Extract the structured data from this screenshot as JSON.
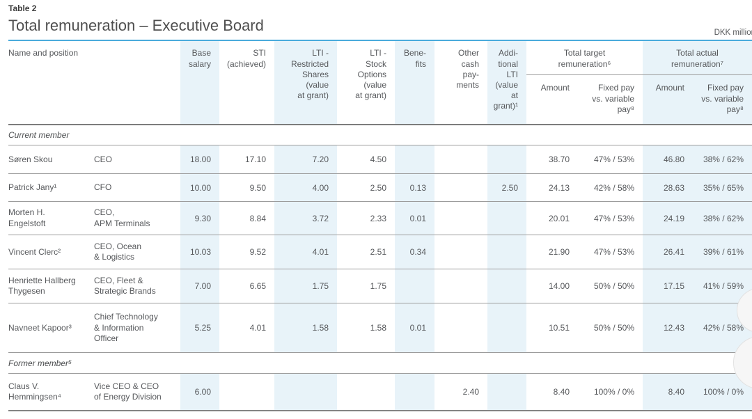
{
  "header": {
    "table_label": "Table 2",
    "title": "Total remuneration – Executive Board",
    "unit": "DKK million"
  },
  "columns": {
    "name_position": "Name and position",
    "base_salary": "Base\nsalary",
    "sti": "STI\n(achieved)",
    "lti_restricted": "LTI -\nRestricted\nShares\n(value\nat grant)",
    "lti_stock": "LTI -\nStock\nOptions\n(value\nat grant)",
    "benefits": "Bene-\nfits",
    "other_cash": "Other\ncash\npay-\nments",
    "additional_lti": "Addi-\ntional\nLTI\n(value\nat\ngrant)¹",
    "target_group": "Total target\nremuneration⁶",
    "actual_group": "Total actual\nremuneration⁷",
    "amount": "Amount",
    "fixed_vs_variable": "Fixed pay\nvs. variable\npay⁸"
  },
  "sections": {
    "current": {
      "label": "Current member"
    },
    "former": {
      "label": "Former member⁵"
    }
  },
  "rows": [
    {
      "name": "Søren Skou",
      "position": "CEO",
      "base": "18.00",
      "sti": "17.10",
      "lti_rs": "7.20",
      "lti_so": "4.50",
      "benefits": "",
      "other_cash": "",
      "additional_lti": "",
      "target_amount": "38.70",
      "target_split": "47% / 53%",
      "actual_amount": "46.80",
      "actual_split": "38% / 62%"
    },
    {
      "name": "Patrick Jany¹",
      "position": "CFO",
      "base": "10.00",
      "sti": "9.50",
      "lti_rs": "4.00",
      "lti_so": "2.50",
      "benefits": "0.13",
      "other_cash": "",
      "additional_lti": "2.50",
      "target_amount": "24.13",
      "target_split": "42% / 58%",
      "actual_amount": "28.63",
      "actual_split": "35% / 65%"
    },
    {
      "name": "Morten H.\nEngelstoft",
      "position": "CEO,\nAPM Terminals",
      "base": "9.30",
      "sti": "8.84",
      "lti_rs": "3.72",
      "lti_so": "2.33",
      "benefits": "0.01",
      "other_cash": "",
      "additional_lti": "",
      "target_amount": "20.01",
      "target_split": "47% / 53%",
      "actual_amount": "24.19",
      "actual_split": "38% / 62%"
    },
    {
      "name": "Vincent Clerc²",
      "position": "CEO, Ocean\n& Logistics",
      "base": "10.03",
      "sti": "9.52",
      "lti_rs": "4.01",
      "lti_so": "2.51",
      "benefits": "0.34",
      "other_cash": "",
      "additional_lti": "",
      "target_amount": "21.90",
      "target_split": "47% / 53%",
      "actual_amount": "26.41",
      "actual_split": "39% / 61%"
    },
    {
      "name": "Henriette Hallberg\nThygesen",
      "position": "CEO, Fleet &\nStrategic Brands",
      "base": "7.00",
      "sti": "6.65",
      "lti_rs": "1.75",
      "lti_so": "1.75",
      "benefits": "",
      "other_cash": "",
      "additional_lti": "",
      "target_amount": "14.00",
      "target_split": "50% / 50%",
      "actual_amount": "17.15",
      "actual_split": "41% / 59%"
    },
    {
      "name": "Navneet Kapoor³",
      "position": "Chief Technology\n& Information\nOfficer",
      "base": "5.25",
      "sti": "4.01",
      "lti_rs": "1.58",
      "lti_so": "1.58",
      "benefits": "0.01",
      "other_cash": "",
      "additional_lti": "",
      "target_amount": "10.51",
      "target_split": "50% / 50%",
      "actual_amount": "12.43",
      "actual_split": "42% / 58%"
    },
    {
      "name": "Claus V.\nHemmingsen⁴",
      "position": "Vice CEO & CEO\nof Energy Division",
      "base": "6.00",
      "sti": "",
      "lti_rs": "",
      "lti_so": "",
      "benefits": "",
      "other_cash": "2.40",
      "additional_lti": "",
      "target_amount": "8.40",
      "target_split": "100% / 0%",
      "actual_amount": "8.40",
      "actual_split": "100% / 0%"
    }
  ]
}
